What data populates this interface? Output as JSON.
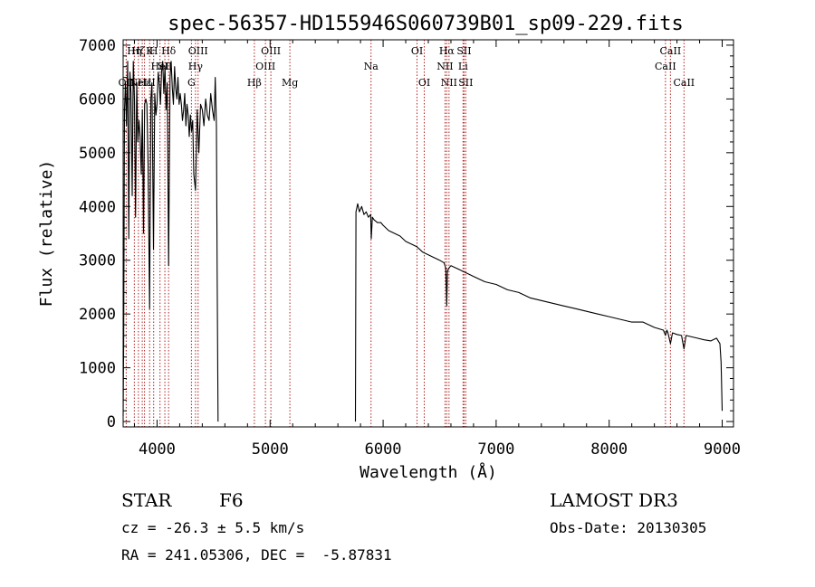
{
  "chart_data": {
    "type": "line",
    "title": "spec-56357-HD155946S060739B01_sp09-229.fits",
    "xlabel": "Wavelength (Å)",
    "ylabel": "Flux (relative)",
    "xlim": [
      3700,
      9100
    ],
    "ylim": [
      -100,
      7100
    ],
    "xticks": [
      4000,
      5000,
      6000,
      7000,
      8000,
      9000
    ],
    "yticks": [
      0,
      1000,
      2000,
      3000,
      4000,
      5000,
      6000,
      7000
    ],
    "series": [
      {
        "name": "spectrum",
        "segments": [
          {
            "x": [
              3700,
              3705,
              3712,
              3720,
              3730,
              3740,
              3750,
              3760,
              3770,
              3780,
              3790,
              3800,
              3810,
              3820,
              3830,
              3840,
              3850,
              3860,
              3870,
              3880,
              3890,
              3900,
              3910,
              3920,
              3934,
              3945,
              3955,
              3968,
              3980,
              3990,
              4000,
              4010,
              4020,
              4030,
              4040,
              4050,
              4060,
              4070,
              4080,
              4090,
              4102,
              4115,
              4125,
              4135,
              4145,
              4155,
              4165,
              4175,
              4185,
              4195,
              4205,
              4215,
              4225,
              4235,
              4245,
              4255,
              4265,
              4275,
              4285,
              4295,
              4305,
              4315,
              4325,
              4340,
              4355,
              4370,
              4385,
              4400,
              4415,
              4430,
              4445,
              4460,
              4475,
              4490,
              4505,
              4515,
              4525,
              4532,
              4540
            ],
            "y": [
              100,
              1500,
              5800,
              6300,
              5500,
              6700,
              3400,
              6500,
              6100,
              4200,
              6700,
              6000,
              3800,
              6300,
              5200,
              5600,
              5300,
              4600,
              5800,
              3500,
              5900,
              6000,
              5900,
              4800,
              2100,
              6000,
              6300,
              3200,
              6100,
              5700,
              5900,
              6500,
              6300,
              5900,
              6500,
              6700,
              6100,
              6600,
              5800,
              6300,
              2900,
              6400,
              6700,
              6200,
              5900,
              6600,
              6200,
              6000,
              6400,
              5900,
              6100,
              5900,
              5600,
              5800,
              6100,
              5500,
              5900,
              5700,
              5300,
              5700,
              5400,
              5600,
              4600,
              4300,
              5800,
              5000,
              5900,
              5800,
              5500,
              6000,
              5700,
              5600,
              6100,
              5800,
              5600,
              6400,
              5500,
              2800,
              0
            ]
          },
          {
            "x": [
              5755,
              5760,
              5775,
              5790,
              5810,
              5830,
              5850,
              5870,
              5890,
              5895,
              5905,
              5920,
              5950,
              5980,
              6000,
              6050,
              6100,
              6150,
              6200,
              6250,
              6300,
              6350,
              6400,
              6450,
              6500,
              6540,
              6555,
              6563,
              6570,
              6580,
              6600,
              6650,
              6700,
              6750,
              6800,
              6900,
              7000,
              7100,
              7200,
              7300,
              7400,
              7500,
              7600,
              7700,
              7800,
              7900,
              8000,
              8100,
              8200,
              8300,
              8400,
              8480,
              8498,
              8510,
              8520,
              8542,
              8560,
              8600,
              8640,
              8662,
              8680,
              8720,
              8780,
              8840,
              8900,
              8950,
              8980,
              8990,
              9000
            ],
            "y": [
              0,
              3900,
              4050,
              3900,
              4000,
              3850,
              3900,
              3800,
              3850,
              3400,
              3800,
              3750,
              3700,
              3700,
              3650,
              3550,
              3500,
              3450,
              3350,
              3300,
              3250,
              3150,
              3100,
              3050,
              3000,
              2950,
              2850,
              2150,
              2800,
              2850,
              2900,
              2850,
              2800,
              2750,
              2700,
              2600,
              2550,
              2450,
              2400,
              2300,
              2250,
              2200,
              2150,
              2100,
              2050,
              2000,
              1950,
              1900,
              1850,
              1850,
              1750,
              1700,
              1600,
              1700,
              1650,
              1450,
              1650,
              1620,
              1600,
              1350,
              1600,
              1580,
              1550,
              1520,
              1500,
              1550,
              1450,
              1100,
              200
            ]
          }
        ]
      }
    ],
    "line_markers": [
      {
        "x": 3727,
        "label": "OII",
        "row": 3
      },
      {
        "x": 3799,
        "label": "Hη",
        "row": 1
      },
      {
        "x": 3835,
        "label": "Hζ",
        "row": 1
      },
      {
        "x": 3869,
        "label": "NeIII",
        "row": 3
      },
      {
        "x": 3889,
        "label": "Hε",
        "row": 3
      },
      {
        "x": 3934,
        "label": "K",
        "row": 1
      },
      {
        "x": 3970,
        "label": "H",
        "row": 1
      },
      {
        "x": 4102,
        "label": "Hδ",
        "row": 1
      },
      {
        "x": 4026,
        "label": "HeI",
        "row": 2
      },
      {
        "x": 4069,
        "label": "SII",
        "row": 2
      },
      {
        "x": 4304,
        "label": "G",
        "row": 3
      },
      {
        "x": 4340,
        "label": "Hγ",
        "row": 2
      },
      {
        "x": 4363,
        "label": "OIII",
        "row": 1
      },
      {
        "x": 4861,
        "label": "Hβ",
        "row": 3
      },
      {
        "x": 4959,
        "label": "OIII",
        "row": 2
      },
      {
        "x": 5007,
        "label": "OIII",
        "row": 1
      },
      {
        "x": 5175,
        "label": "Mg",
        "row": 3
      },
      {
        "x": 5893,
        "label": "Na",
        "row": 2
      },
      {
        "x": 6300,
        "label": "OI",
        "row": 1
      },
      {
        "x": 6364,
        "label": "OI",
        "row": 3
      },
      {
        "x": 6548,
        "label": "NII",
        "row": 2
      },
      {
        "x": 6563,
        "label": "Hα",
        "row": 1
      },
      {
        "x": 6583,
        "label": "NII",
        "row": 3
      },
      {
        "x": 6707,
        "label": "Li",
        "row": 2
      },
      {
        "x": 6716,
        "label": "SII",
        "row": 1
      },
      {
        "x": 6731,
        "label": "SII",
        "row": 3
      },
      {
        "x": 8498,
        "label": "CaII",
        "row": 2
      },
      {
        "x": 8542,
        "label": "CaII",
        "row": 1
      },
      {
        "x": 8662,
        "label": "CaII",
        "row": 3
      }
    ]
  },
  "info": {
    "class": "STAR",
    "subclass": "F6",
    "survey": "LAMOST DR3",
    "cz": "cz = -26.3 ± 5.5 km/s",
    "obs_date": "Obs-Date: 20130305",
    "radec": "RA = 241.05306, DEC =  -5.87831"
  },
  "colors": {
    "spectrum": "#000000",
    "marker": "#b22222",
    "axis": "#000000"
  }
}
